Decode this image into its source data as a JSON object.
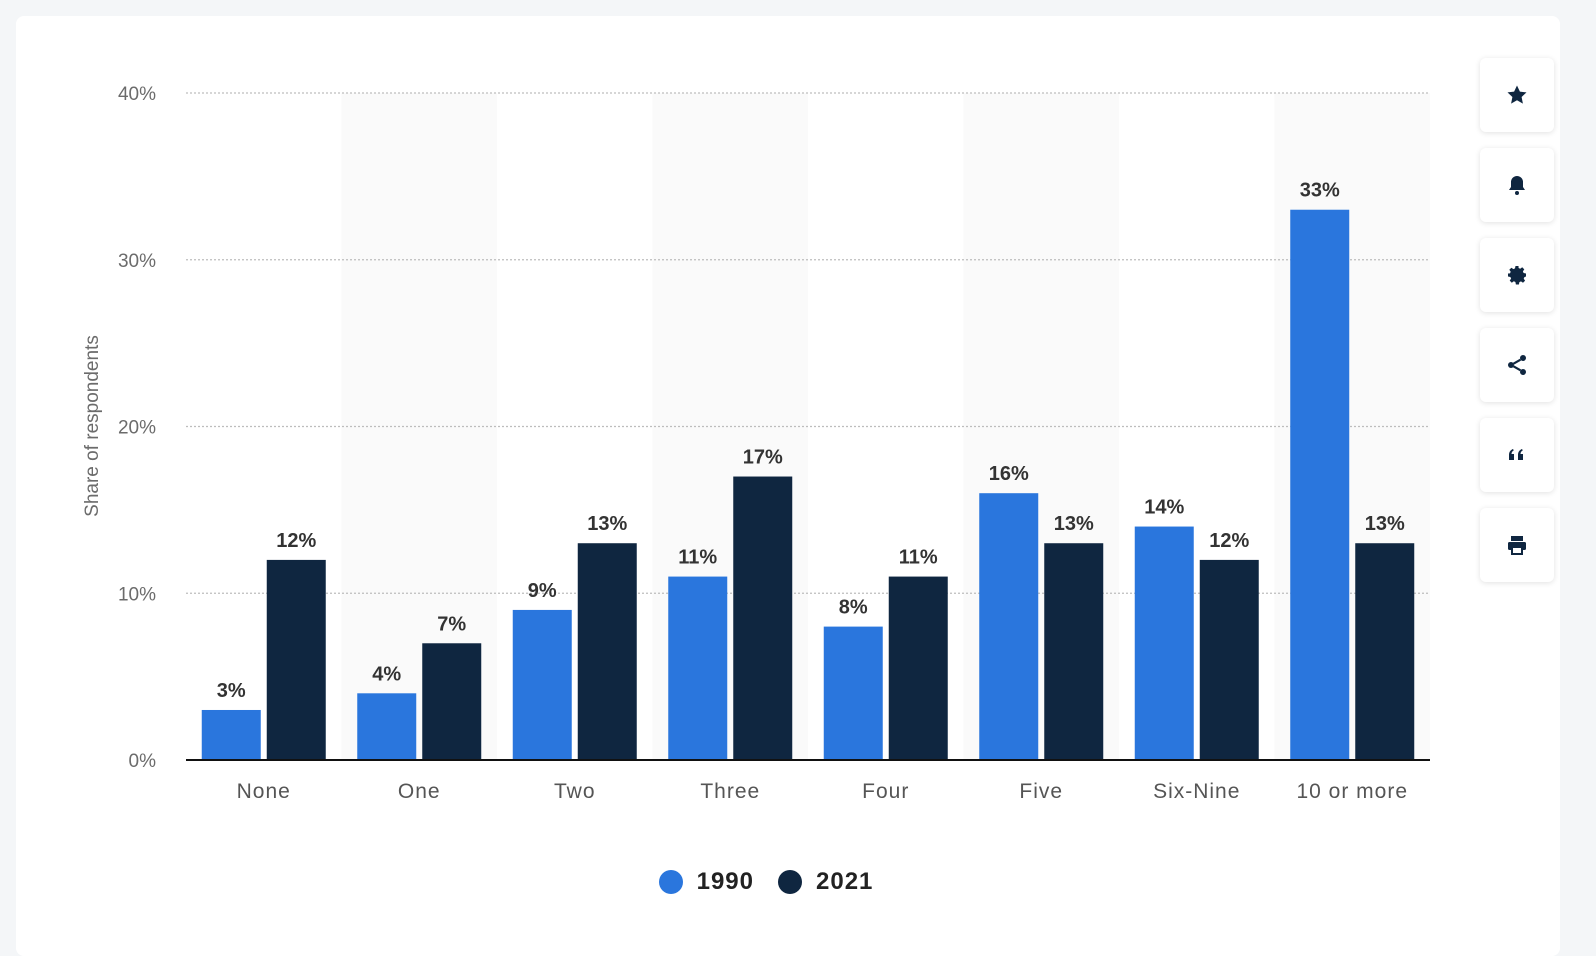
{
  "colors": {
    "series_1990": "#2a76dd",
    "series_2021": "#0f2640",
    "axis_text": "#6b6b6b",
    "label_text": "#333333",
    "band": "#fafafa",
    "grid": "#bdbdbd"
  },
  "toolbar": {
    "buttons": [
      {
        "name": "favorite-button",
        "icon": "star-icon"
      },
      {
        "name": "notification-button",
        "icon": "bell-icon"
      },
      {
        "name": "settings-button",
        "icon": "gear-icon"
      },
      {
        "name": "share-button",
        "icon": "share-icon"
      },
      {
        "name": "cite-button",
        "icon": "quote-icon"
      },
      {
        "name": "print-button",
        "icon": "printer-icon"
      }
    ]
  },
  "legend": [
    {
      "label": "1990",
      "color": "#2a76dd"
    },
    {
      "label": "2021",
      "color": "#0f2640"
    }
  ],
  "chart_data": {
    "type": "bar",
    "categories": [
      "None",
      "One",
      "Two",
      "Three",
      "Four",
      "Five",
      "Six-Nine",
      "10 or more"
    ],
    "series": [
      {
        "name": "1990",
        "values": [
          3,
          4,
          9,
          11,
          8,
          16,
          14,
          33
        ]
      },
      {
        "name": "2021",
        "values": [
          12,
          7,
          13,
          17,
          11,
          13,
          12,
          13
        ]
      }
    ],
    "ylabel": "Share of respondents",
    "ylim": [
      0,
      40
    ],
    "yticks": [
      0,
      10,
      20,
      30,
      40
    ],
    "ytick_labels": [
      "0%",
      "10%",
      "20%",
      "30%",
      "40%"
    ],
    "value_suffix": "%",
    "grid": true,
    "legend_position": "bottom"
  }
}
